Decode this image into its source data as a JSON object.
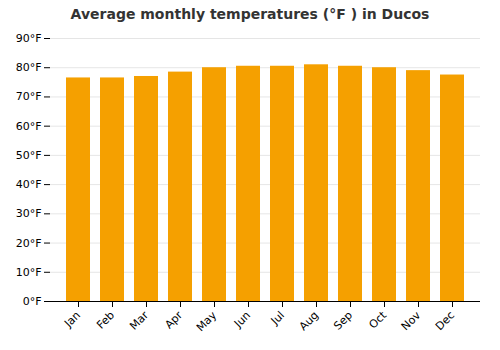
{
  "chart_data": {
    "type": "bar",
    "title": "Average monthly temperatures (°F ) in Ducos",
    "categories": [
      "Jan",
      "Feb",
      "Mar",
      "Apr",
      "May",
      "Jun",
      "Jul",
      "Aug",
      "Sep",
      "Oct",
      "Nov",
      "Dec"
    ],
    "values": [
      76.5,
      76.5,
      77.0,
      78.5,
      80.0,
      80.5,
      80.5,
      81.0,
      80.5,
      80.0,
      79.0,
      77.5
    ],
    "color": "#F5A000",
    "ylim": [
      0,
      90
    ],
    "yticks": [
      {
        "value": 0,
        "label": "0°F"
      },
      {
        "value": 10,
        "label": "10°F"
      },
      {
        "value": 20,
        "label": "20°F"
      },
      {
        "value": 30,
        "label": "30°F"
      },
      {
        "value": 40,
        "label": "40°F"
      },
      {
        "value": 50,
        "label": "50°F"
      },
      {
        "value": 60,
        "label": "60°F"
      },
      {
        "value": 70,
        "label": "70°F"
      },
      {
        "value": 80,
        "label": "80°F"
      },
      {
        "value": 90,
        "label": "90°F"
      }
    ],
    "grid": true
  }
}
